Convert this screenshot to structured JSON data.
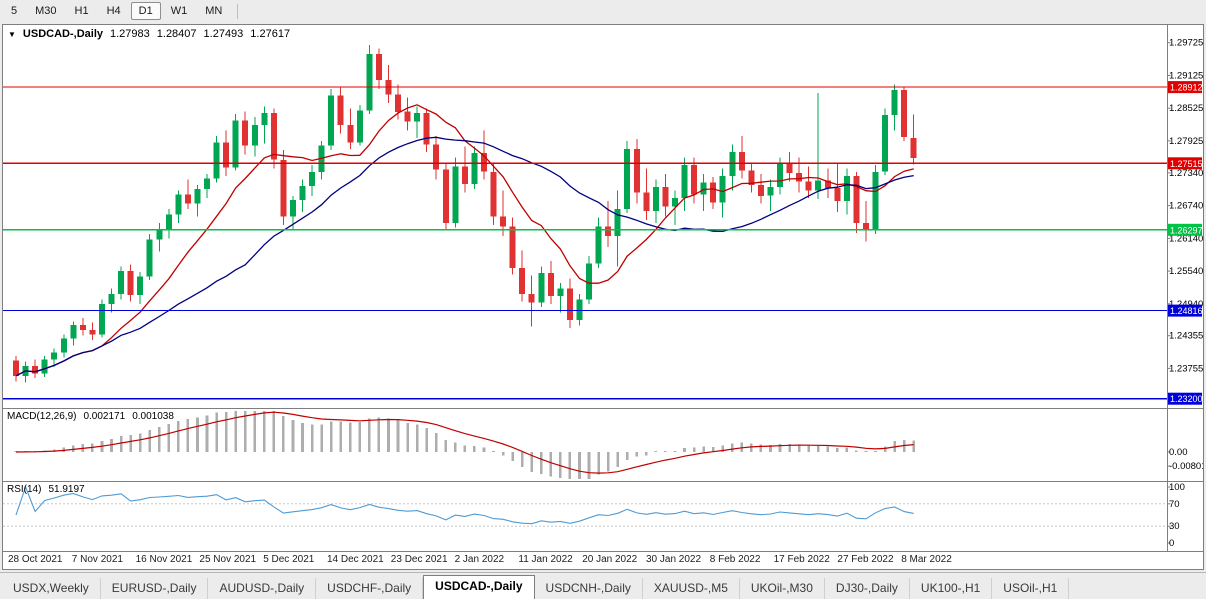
{
  "toolbar": {
    "timeframes": [
      {
        "label": "5",
        "selected": false
      },
      {
        "label": "M30",
        "selected": false
      },
      {
        "label": "H1",
        "selected": false
      },
      {
        "label": "H4",
        "selected": false
      },
      {
        "label": "D1",
        "selected": true
      },
      {
        "label": "W1",
        "selected": false
      },
      {
        "label": "MN",
        "selected": false
      }
    ]
  },
  "chart_header": {
    "dropdown_icon": "▼",
    "symbol": "USDCAD-,Daily",
    "open": "1.27983",
    "high": "1.28407",
    "low": "1.27493",
    "close": "1.27617"
  },
  "price_scale": {
    "labels": [
      "1.29725",
      "1.29125",
      "1.28525",
      "1.27925",
      "1.27340",
      "1.26740",
      "1.26140",
      "1.25540",
      "1.24940",
      "1.24355",
      "1.23755"
    ]
  },
  "macd_panel": {
    "label": "MACD(12,26,9)",
    "main_value": "0.002171",
    "signal_value": "0.001038",
    "scale_labels": [
      "0.00",
      "-0.00801"
    ]
  },
  "rsi_panel": {
    "label": "RSI(14)",
    "value": "51.9197",
    "scale_labels": [
      "100",
      "70",
      "30",
      "0"
    ]
  },
  "tabs": [
    {
      "label": "USDX,Weekly",
      "selected": false
    },
    {
      "label": "EURUSD-,Daily",
      "selected": false
    },
    {
      "label": "AUDUSD-,Daily",
      "selected": false
    },
    {
      "label": "USDCHF-,Daily",
      "selected": false
    },
    {
      "label": "USDCAD-,Daily",
      "selected": true
    },
    {
      "label": "USDCNH-,Daily",
      "selected": false
    },
    {
      "label": "XAUUSD-,M5",
      "selected": false
    },
    {
      "label": "UKOil-,M30",
      "selected": false
    },
    {
      "label": "DJ30-,Daily",
      "selected": false
    },
    {
      "label": "UK100-,H1",
      "selected": false
    },
    {
      "label": "USOil-,H1",
      "selected": false
    }
  ],
  "colors": {
    "up": "#00A651",
    "down": "#E03232",
    "ma_fast": "#C00000",
    "ma_slow": "#000080",
    "macd_hist": "#ADADAD",
    "macd_signal": "#C00000",
    "rsi_line": "#4D9BD6",
    "level_dash": "#C8C8C8",
    "scale_text": "#000000"
  },
  "chart_data": {
    "type": "candlestick",
    "symbol": "USDCAD-",
    "period": "Daily",
    "title": "USDCAD-,Daily",
    "y_range": [
      1.2303,
      1.3005
    ],
    "x_labels": [
      "28 Oct 2021",
      "7 Nov 2021",
      "16 Nov 2021",
      "25 Nov 2021",
      "5 Dec 2021",
      "14 Dec 2021",
      "23 Dec 2021",
      "2 Jan 2022",
      "11 Jan 2022",
      "20 Jan 2022",
      "30 Jan 2022",
      "8 Feb 2022",
      "17 Feb 2022",
      "27 Feb 2022",
      "8 Mar 2022"
    ],
    "hlines": [
      {
        "price": 1.28912,
        "label": "1.28912",
        "color": "#E00000"
      },
      {
        "price": 1.27515,
        "label": "1.27515",
        "color": "#E00000"
      },
      {
        "price": 1.26297,
        "label": "1.26297",
        "color": "#00C244"
      },
      {
        "price": 1.24816,
        "label": "1.24816",
        "color": "#0000DD"
      },
      {
        "price": 1.232,
        "label": "1.23200",
        "color": "#0000DD"
      }
    ],
    "overlays": [
      {
        "name": "ma-fast",
        "type": "sma",
        "period": 10,
        "color": "#C00000"
      },
      {
        "name": "ma-slow",
        "type": "sma",
        "period": 25,
        "color": "#000080"
      }
    ],
    "indicators": [
      {
        "name": "MACD",
        "params": "12,26,9",
        "main": 0.002171,
        "signal": 0.001038
      },
      {
        "name": "RSI",
        "params": "14",
        "value": 51.9197
      }
    ],
    "ohlc": [
      [
        1.239,
        1.2398,
        1.2352,
        1.2362
      ],
      [
        1.2362,
        1.2388,
        1.235,
        1.238
      ],
      [
        1.238,
        1.2392,
        1.2358,
        1.2366
      ],
      [
        1.2366,
        1.2398,
        1.236,
        1.2392
      ],
      [
        1.2392,
        1.2412,
        1.2378,
        1.2405
      ],
      [
        1.2405,
        1.2438,
        1.2396,
        1.243
      ],
      [
        1.243,
        1.2462,
        1.2418,
        1.2455
      ],
      [
        1.2455,
        1.2468,
        1.2436,
        1.2446
      ],
      [
        1.2446,
        1.246,
        1.2428,
        1.2438
      ],
      [
        1.2438,
        1.2502,
        1.2432,
        1.2494
      ],
      [
        1.2494,
        1.2522,
        1.2478,
        1.2512
      ],
      [
        1.2512,
        1.2562,
        1.2502,
        1.2554
      ],
      [
        1.2554,
        1.2566,
        1.2498,
        1.251
      ],
      [
        1.251,
        1.2552,
        1.2494,
        1.2544
      ],
      [
        1.2544,
        1.2622,
        1.2538,
        1.2612
      ],
      [
        1.2612,
        1.2642,
        1.259,
        1.263
      ],
      [
        1.263,
        1.2668,
        1.2614,
        1.2658
      ],
      [
        1.2658,
        1.2702,
        1.2642,
        1.2694
      ],
      [
        1.2694,
        1.2722,
        1.2668,
        1.2678
      ],
      [
        1.2678,
        1.2712,
        1.2654,
        1.2704
      ],
      [
        1.2704,
        1.2732,
        1.2688,
        1.2724
      ],
      [
        1.2724,
        1.2802,
        1.2716,
        1.279
      ],
      [
        1.279,
        1.2812,
        1.2728,
        1.2744
      ],
      [
        1.2744,
        1.2842,
        1.2738,
        1.283
      ],
      [
        1.283,
        1.2846,
        1.2768,
        1.2784
      ],
      [
        1.2784,
        1.2836,
        1.2764,
        1.2822
      ],
      [
        1.2822,
        1.2856,
        1.2788,
        1.2844
      ],
      [
        1.2844,
        1.2852,
        1.2742,
        1.2758
      ],
      [
        1.2758,
        1.2776,
        1.2638,
        1.2654
      ],
      [
        1.2654,
        1.2692,
        1.2628,
        1.2684
      ],
      [
        1.2684,
        1.2722,
        1.2662,
        1.271
      ],
      [
        1.271,
        1.2748,
        1.2692,
        1.2736
      ],
      [
        1.2736,
        1.2792,
        1.2722,
        1.2784
      ],
      [
        1.2784,
        1.2888,
        1.2776,
        1.2876
      ],
      [
        1.2876,
        1.2892,
        1.2806,
        1.2822
      ],
      [
        1.2822,
        1.2852,
        1.2778,
        1.279
      ],
      [
        1.279,
        1.2858,
        1.2784,
        1.2848
      ],
      [
        1.2848,
        1.2968,
        1.2842,
        1.2952
      ],
      [
        1.2952,
        1.2962,
        1.2888,
        1.2904
      ],
      [
        1.2904,
        1.2932,
        1.2862,
        1.2878
      ],
      [
        1.2878,
        1.2896,
        1.2832,
        1.2846
      ],
      [
        1.2846,
        1.2872,
        1.2812,
        1.2828
      ],
      [
        1.2828,
        1.2856,
        1.2798,
        1.2844
      ],
      [
        1.2844,
        1.2852,
        1.2772,
        1.2786
      ],
      [
        1.2786,
        1.2802,
        1.2722,
        1.274
      ],
      [
        1.274,
        1.2752,
        1.2628,
        1.2642
      ],
      [
        1.2642,
        1.2762,
        1.2634,
        1.2746
      ],
      [
        1.2746,
        1.2782,
        1.2698,
        1.2714
      ],
      [
        1.2714,
        1.2782,
        1.2704,
        1.277
      ],
      [
        1.277,
        1.2812,
        1.2722,
        1.2736
      ],
      [
        1.2736,
        1.2752,
        1.2638,
        1.2654
      ],
      [
        1.2654,
        1.2702,
        1.2618,
        1.2636
      ],
      [
        1.2636,
        1.2652,
        1.2548,
        1.256
      ],
      [
        1.256,
        1.2592,
        1.2498,
        1.2512
      ],
      [
        1.2512,
        1.2546,
        1.2452,
        1.2496
      ],
      [
        1.2496,
        1.2562,
        1.2488,
        1.255
      ],
      [
        1.255,
        1.2572,
        1.2494,
        1.2508
      ],
      [
        1.2508,
        1.2532,
        1.2478,
        1.2522
      ],
      [
        1.2522,
        1.254,
        1.245,
        1.2464
      ],
      [
        1.2464,
        1.2512,
        1.2454,
        1.2502
      ],
      [
        1.2502,
        1.2582,
        1.2494,
        1.2568
      ],
      [
        1.2568,
        1.2652,
        1.256,
        1.2636
      ],
      [
        1.2636,
        1.2682,
        1.2598,
        1.2618
      ],
      [
        1.2618,
        1.2702,
        1.2562,
        1.2668
      ],
      [
        1.2668,
        1.2792,
        1.266,
        1.2778
      ],
      [
        1.2778,
        1.2796,
        1.2678,
        1.2698
      ],
      [
        1.2698,
        1.2742,
        1.2648,
        1.2664
      ],
      [
        1.2664,
        1.2722,
        1.2642,
        1.2708
      ],
      [
        1.2708,
        1.2732,
        1.2654,
        1.2672
      ],
      [
        1.2672,
        1.2702,
        1.2638,
        1.2688
      ],
      [
        1.2688,
        1.2762,
        1.2664,
        1.2748
      ],
      [
        1.2748,
        1.2762,
        1.2678,
        1.2694
      ],
      [
        1.2694,
        1.2732,
        1.2664,
        1.2716
      ],
      [
        1.2716,
        1.2726,
        1.2668,
        1.268
      ],
      [
        1.268,
        1.2742,
        1.2652,
        1.2728
      ],
      [
        1.2728,
        1.2786,
        1.2702,
        1.2772
      ],
      [
        1.2772,
        1.2802,
        1.2724,
        1.2738
      ],
      [
        1.2738,
        1.2752,
        1.2698,
        1.2712
      ],
      [
        1.2712,
        1.2732,
        1.2678,
        1.2692
      ],
      [
        1.2692,
        1.2722,
        1.2664,
        1.2708
      ],
      [
        1.2708,
        1.2762,
        1.2694,
        1.275
      ],
      [
        1.275,
        1.2772,
        1.2718,
        1.2734
      ],
      [
        1.2734,
        1.2762,
        1.2698,
        1.2718
      ],
      [
        1.2718,
        1.2746,
        1.2688,
        1.2702
      ],
      [
        1.2702,
        1.288,
        1.2686,
        1.272
      ],
      [
        1.272,
        1.2742,
        1.2688,
        1.2706
      ],
      [
        1.2706,
        1.2752,
        1.2662,
        1.2682
      ],
      [
        1.2682,
        1.2742,
        1.2658,
        1.2728
      ],
      [
        1.2728,
        1.2736,
        1.2624,
        1.2642
      ],
      [
        1.2642,
        1.2682,
        1.2608,
        1.263
      ],
      [
        1.263,
        1.2748,
        1.2622,
        1.2736
      ],
      [
        1.2736,
        1.2852,
        1.273,
        1.284
      ],
      [
        1.284,
        1.2896,
        1.2812,
        1.2886
      ],
      [
        1.2886,
        1.2892,
        1.2792,
        1.28
      ],
      [
        1.27983,
        1.28407,
        1.27493,
        1.27617
      ]
    ]
  }
}
